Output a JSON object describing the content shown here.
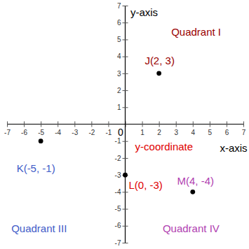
{
  "chart_data": {
    "type": "scatter",
    "xlabel": "x-axis",
    "ylabel": "y-axis",
    "x": [
      2,
      -5,
      0,
      4
    ],
    "values": [
      3,
      -1,
      -3,
      -4
    ],
    "value_labels": [
      "J(2, 3)",
      "K(-5, -1)",
      "L(0, -3)",
      "M(4, -4)"
    ],
    "data_labels": true,
    "color": "#000000",
    "marker": "circle",
    "xlim": [
      -7,
      7
    ],
    "ylim": [
      -7,
      7
    ],
    "xticks": [
      -7,
      -6,
      -5,
      -4,
      -3,
      -2,
      -1,
      0,
      1,
      2,
      3,
      4,
      5,
      6,
      7
    ],
    "yticks": [
      -7,
      -6,
      -5,
      -4,
      -3,
      -2,
      -1,
      1,
      2,
      3,
      4,
      5,
      6,
      7
    ],
    "grid": false,
    "annotations": [
      {
        "text": "Quadrant I",
        "x": 4.2,
        "y": 5.4,
        "color": "#990000"
      },
      {
        "text": "y-coordinate",
        "x": 2.3,
        "y": -1.4,
        "color": "#e00000"
      },
      {
        "text": "Quadrant III",
        "x": -5.1,
        "y": -6.2,
        "color": "#3f5cc8"
      },
      {
        "text": "Quadrant IV",
        "x": 3.9,
        "y": -6.2,
        "color": "#b040b0"
      }
    ]
  }
}
